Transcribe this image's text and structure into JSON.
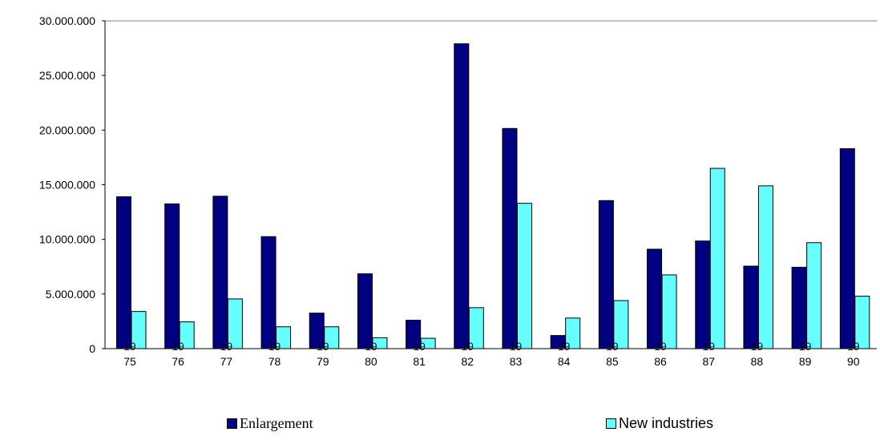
{
  "chart_data": {
    "type": "bar",
    "categories": [
      "75",
      "76",
      "77",
      "78",
      "79",
      "80",
      "81",
      "82",
      "83",
      "84",
      "85",
      "86",
      "87",
      "88",
      "89",
      "90"
    ],
    "overlay_labels": [
      "19",
      "19",
      "19",
      "19",
      "19",
      "19",
      "19",
      "19",
      "19",
      "19",
      "19",
      "19",
      "19",
      "19",
      "19",
      "19"
    ],
    "series": [
      {
        "name": "Enlargement",
        "color": "#000080",
        "values": [
          13900000,
          13250000,
          13950000,
          10250000,
          3250000,
          6850000,
          2600000,
          27900000,
          20150000,
          1200000,
          13550000,
          9100000,
          9850000,
          7550000,
          7450000,
          18300000
        ]
      },
      {
        "name": "New industries",
        "color": "#66FFFF",
        "values": [
          3400000,
          2450000,
          4550000,
          2000000,
          2000000,
          1000000,
          950000,
          3750000,
          13300000,
          2800000,
          4400000,
          6750000,
          16500000,
          14900000,
          9700000,
          4800000
        ]
      }
    ],
    "y_ticks": [
      "0",
      "5.000.000",
      "10.000.000",
      "15.000.000",
      "20.000.000",
      "25.000.000",
      "30.000.000"
    ],
    "ylim": [
      0,
      30000000
    ],
    "grid": "top-line-only",
    "legend_position": "bottom"
  }
}
